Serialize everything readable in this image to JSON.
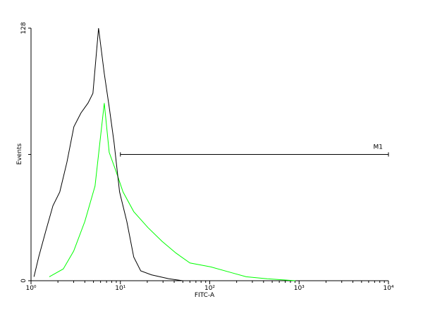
{
  "chart_data": {
    "type": "histogram",
    "xlabel": "FITC-A",
    "ylabel": "Events",
    "xscale": "log",
    "xlim": [
      1,
      10000
    ],
    "xticks": [
      {
        "value": 1,
        "label": "10⁰"
      },
      {
        "value": 10,
        "label": "10¹"
      },
      {
        "value": 100,
        "label": "10²"
      },
      {
        "value": 1000,
        "label": "10³"
      },
      {
        "value": 10000,
        "label": "10⁴"
      }
    ],
    "ylim": [
      0,
      128
    ],
    "yticks": [
      0,
      128
    ],
    "minor_yticks": [
      64
    ],
    "series": [
      {
        "name": null,
        "color": "#000000",
        "x": [
          1.08,
          1.22,
          1.46,
          1.76,
          2.1,
          2.52,
          3.02,
          3.62,
          4.34,
          4.93,
          5.7,
          6.6,
          7.5,
          8.5,
          9.8,
          11.8,
          14.1,
          16.9,
          22.2,
          34.9,
          50
        ],
        "values": [
          2,
          12,
          25,
          38,
          45,
          60,
          78,
          85,
          90,
          95,
          128,
          105,
          88,
          70,
          45,
          30,
          12,
          5,
          3,
          1,
          0
        ]
      },
      {
        "name": null,
        "color": "#00ff00",
        "x": [
          1.6,
          2.3,
          3.0,
          4.0,
          5.2,
          6.6,
          7.5,
          9.0,
          10.7,
          14.1,
          20.3,
          29.2,
          41.9,
          60,
          103,
          178,
          256,
          440,
          910
        ],
        "values": [
          2,
          6,
          15,
          30,
          48,
          90,
          65,
          55,
          45,
          35,
          27,
          20,
          14,
          9,
          7,
          4,
          2,
          1,
          0
        ]
      }
    ],
    "markers": [
      {
        "label": "M1",
        "range": [
          10,
          10000
        ],
        "level": 64
      }
    ]
  }
}
